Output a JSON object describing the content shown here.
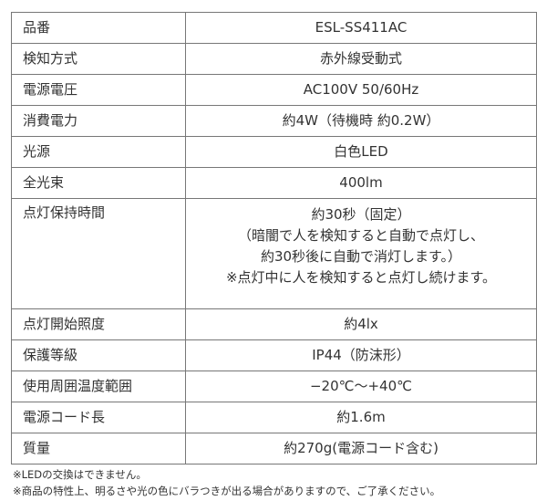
{
  "rows": [
    {
      "label": "品番",
      "value": [
        "ESL-SS411AC"
      ]
    },
    {
      "label": "検知方式",
      "value": [
        "赤外線受動式"
      ]
    },
    {
      "label": "電源電圧",
      "value": [
        "AC100V 50/60Hz"
      ]
    },
    {
      "label": "消費電力",
      "value": [
        "約4W（待機時 約0.2W）"
      ]
    },
    {
      "label": "光源",
      "value": [
        "白色LED"
      ]
    },
    {
      "label": "全光束",
      "value": [
        "400lm"
      ]
    },
    {
      "label": "点灯保持時間",
      "value": [
        "約30秒（固定）",
        "（暗闇で人を検知すると自動で点灯し、",
        "約30秒後に自動で消灯します。）",
        "※点灯中に人を検知すると点灯し続けます。"
      ]
    },
    {
      "label": "点灯開始照度",
      "value": [
        "約4lx"
      ]
    },
    {
      "label": "保護等級",
      "value": [
        "IP44（防沫形）"
      ]
    },
    {
      "label": "使用周囲温度範囲",
      "value": [
        "−20℃〜+40℃"
      ]
    },
    {
      "label": "電源コード長",
      "value": [
        "約1.6m"
      ]
    },
    {
      "label": "質量",
      "value": [
        "約270g(電源コード含む)"
      ]
    }
  ],
  "notes": [
    "※LEDの交換はできません。",
    "※商品の特性上、明るさや光の色にバラつきが出る場合がありますので、ご了承ください。"
  ]
}
